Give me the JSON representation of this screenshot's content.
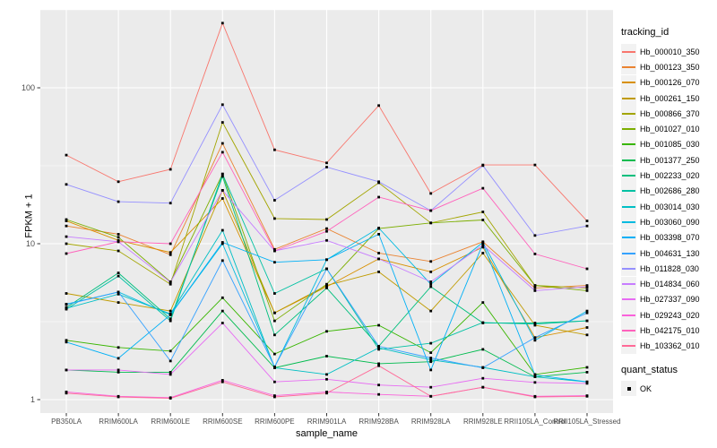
{
  "chart_data": {
    "type": "line",
    "title": "",
    "xlabel": "sample_name",
    "ylabel": "FPKM + 1",
    "log_y": true,
    "ylim": [
      0.83,
      320
    ],
    "y_ticks": [
      1,
      10,
      100
    ],
    "y_tick_labels": [
      "1",
      "10",
      "100"
    ],
    "y_minor": [
      3.162,
      31.62,
      316.2
    ],
    "grid": "on",
    "legend_position": "right",
    "legend_title": "tracking_id",
    "legend2_title": "quant_status",
    "legend2_entry": "OK",
    "point_shape": "black-square",
    "categories": [
      "PB350LA",
      "RRIM600LA",
      "RRIM600LE",
      "RRIM600SE",
      "RRIM600PE",
      "RRIM901LA",
      "RRIM928BA",
      "RRIM928LA",
      "RRIM928LE",
      "RRII105LA_Control",
      "RRII105LA_Stressed"
    ],
    "series": [
      {
        "name": "Hb_000010_350",
        "color": "#F8766D",
        "values": [
          37,
          25,
          30,
          260,
          40,
          33,
          77,
          21,
          32,
          32,
          14
        ]
      },
      {
        "name": "Hb_000123_350",
        "color": "#EA8331",
        "values": [
          13,
          11.5,
          8.5,
          44,
          9.2,
          12.5,
          8.7,
          7.7,
          10.3,
          5.2,
          5.4
        ]
      },
      {
        "name": "Hb_000126_070",
        "color": "#D89000",
        "values": [
          14,
          10.5,
          8.8,
          19.5,
          3.6,
          5.3,
          8.0,
          6.6,
          9.5,
          2.5,
          2.9
        ]
      },
      {
        "name": "Hb_000261_150",
        "color": "#C09B00",
        "values": [
          4.8,
          4.2,
          3.7,
          22,
          3.6,
          5.4,
          6.6,
          3.7,
          8.7,
          3.0,
          2.6
        ]
      },
      {
        "name": "Hb_000866_370",
        "color": "#A3A500",
        "values": [
          10,
          9.0,
          5.5,
          60,
          14.5,
          14.3,
          24.6,
          13.6,
          16,
          5.4,
          5.2
        ]
      },
      {
        "name": "Hb_001027_010",
        "color": "#7CAE00",
        "values": [
          14.3,
          11,
          5.7,
          28,
          3.2,
          5.5,
          12.5,
          13.6,
          14.2,
          5.4,
          5.0
        ]
      },
      {
        "name": "Hb_001085_030",
        "color": "#39B600",
        "values": [
          2.4,
          2.16,
          2.05,
          4.5,
          1.96,
          2.74,
          3.0,
          2.0,
          4.2,
          1.45,
          1.61
        ]
      },
      {
        "name": "Hb_001377_250",
        "color": "#00BB4E",
        "values": [
          1.55,
          1.5,
          1.5,
          3.7,
          1.6,
          1.9,
          1.7,
          1.75,
          2.1,
          1.4,
          1.5
        ]
      },
      {
        "name": "Hb_002233_020",
        "color": "#00BF7D",
        "values": [
          3.9,
          6.5,
          3.3,
          27,
          2.6,
          5.2,
          2.2,
          5.3,
          3.1,
          3.1,
          3.2
        ]
      },
      {
        "name": "Hb_002686_280",
        "color": "#00C1A3",
        "values": [
          3.8,
          6.2,
          3.2,
          28,
          4.8,
          6.9,
          2.1,
          2.3,
          3.12,
          3.05,
          3.2
        ]
      },
      {
        "name": "Hb_003014_030",
        "color": "#00BFC4",
        "values": [
          3.85,
          4.75,
          3.55,
          12.2,
          1.6,
          1.45,
          2.15,
          1.8,
          1.61,
          1.4,
          1.3
        ]
      },
      {
        "name": "Hb_003060_090",
        "color": "#00BAE0",
        "values": [
          4.1,
          4.9,
          3.5,
          10,
          1.62,
          7.9,
          12.6,
          5.5,
          10.2,
          2.4,
          3.7
        ]
      },
      {
        "name": "Hb_003398_070",
        "color": "#00B0F6",
        "values": [
          2.34,
          1.84,
          3.5,
          10.2,
          7.6,
          7.9,
          11.5,
          1.55,
          10,
          1.44,
          1.3
        ]
      },
      {
        "name": "Hb_004631_130",
        "color": "#35A2FF",
        "values": [
          4.07,
          4.9,
          1.77,
          7.8,
          1.62,
          6.9,
          2.2,
          1.85,
          1.6,
          2.5,
          3.6
        ]
      },
      {
        "name": "Hb_011828_030",
        "color": "#9590FF",
        "values": [
          24,
          18.6,
          18.2,
          78,
          19,
          31,
          25,
          16.3,
          31.7,
          11.3,
          13
        ]
      },
      {
        "name": "Hb_014834_060",
        "color": "#C77CFF",
        "values": [
          11.1,
          10.3,
          5.66,
          22,
          9.0,
          10.5,
          8.0,
          5.7,
          9.8,
          5.0,
          5.3
        ]
      },
      {
        "name": "Hb_027337_090",
        "color": "#E76BF3",
        "values": [
          1.55,
          1.55,
          1.45,
          3.1,
          1.3,
          1.35,
          1.24,
          1.2,
          1.37,
          1.29,
          1.27
        ]
      },
      {
        "name": "Hb_029243_020",
        "color": "#FA62DB",
        "values": [
          1.12,
          1.05,
          1.03,
          1.33,
          1.06,
          1.12,
          1.08,
          1.05,
          1.2,
          1.05,
          1.06
        ]
      },
      {
        "name": "Hb_042175_010",
        "color": "#FF62BC",
        "values": [
          8.65,
          10.3,
          10,
          38.6,
          9.0,
          12,
          19.9,
          16.3,
          22.7,
          8.6,
          6.9
        ]
      },
      {
        "name": "Hb_103362_010",
        "color": "#FF6A98",
        "values": [
          1.1,
          1.04,
          1.02,
          1.3,
          1.04,
          1.1,
          1.65,
          1.05,
          1.2,
          1.04,
          1.05
        ]
      }
    ],
    "panel_bg": "#EBEBEB",
    "grid_color": "#FFFFFF",
    "tick_label_color": "#4D4D4D",
    "point_color": "#000000"
  }
}
